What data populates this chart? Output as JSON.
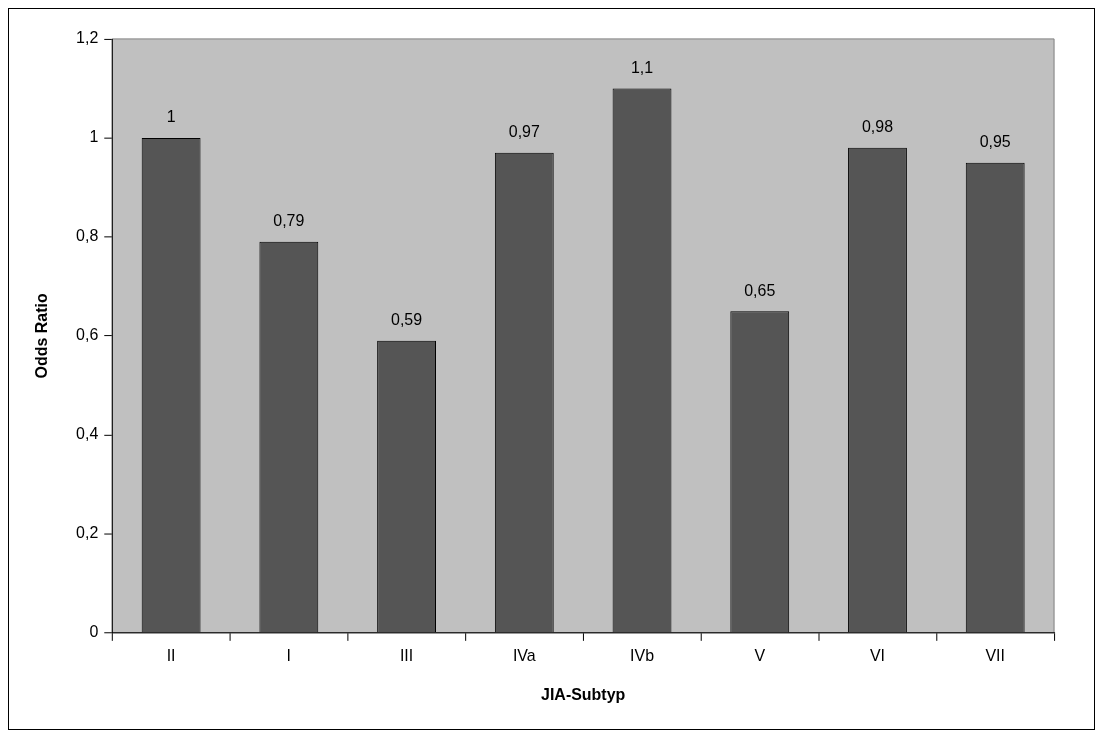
{
  "chart_data": {
    "type": "bar",
    "xlabel": "JIA-Subtyp",
    "ylabel": "Odds Ratio",
    "categories": [
      "II",
      "I",
      "III",
      "IVa",
      "IVb",
      "V",
      "VI",
      "VII"
    ],
    "values": [
      1,
      0.79,
      0.59,
      0.97,
      1.1,
      0.65,
      0.98,
      0.95
    ],
    "value_labels": [
      "1",
      "0,79",
      "0,59",
      "0,97",
      "1,1",
      "0,65",
      "0,98",
      "0,95"
    ],
    "color": "#555555",
    "ylim": [
      0,
      1.2
    ],
    "yticks": [
      0,
      {
        "value": 0.2,
        "label": "0,2"
      },
      {
        "value": 0.4,
        "label": "0,4"
      },
      {
        "value": 0.6,
        "label": "0,6"
      },
      {
        "value": 0.8,
        "label": "0,8"
      },
      1,
      {
        "value": 1.2,
        "label": "1,2"
      }
    ]
  }
}
